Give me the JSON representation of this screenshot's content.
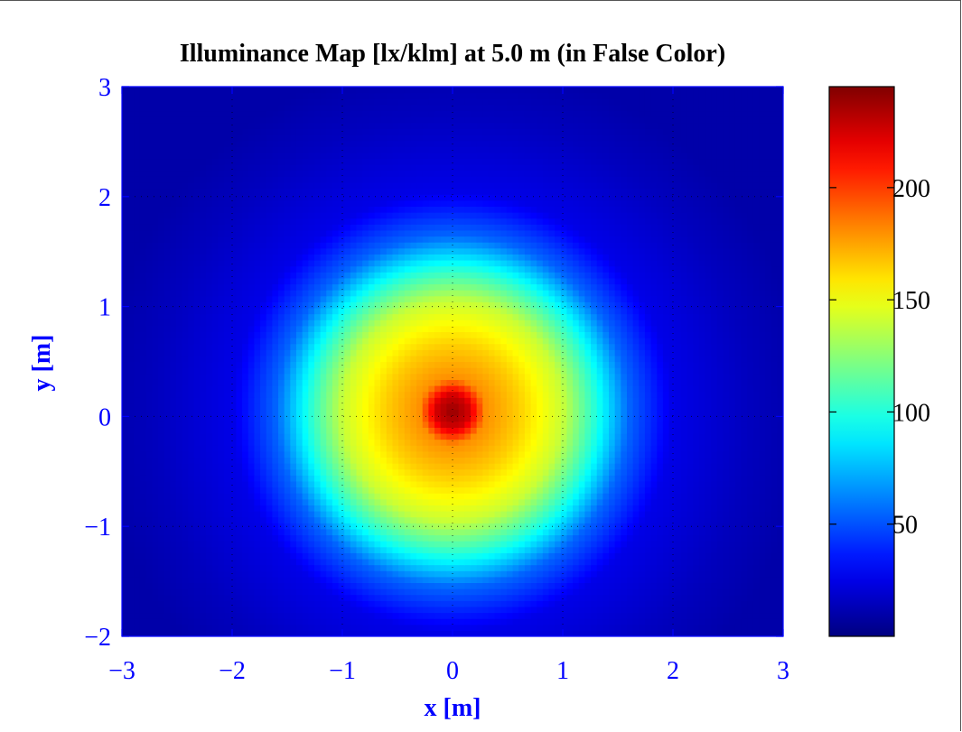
{
  "chart_data": {
    "type": "heatmap",
    "title": "Illuminance Map [lx/klm] at 5.0 m (in False Color)",
    "xlabel": "x [m]",
    "ylabel": "y [m]",
    "xlim": [
      -3,
      3
    ],
    "ylim": [
      -2,
      3
    ],
    "x_ticks": [
      -3,
      -2,
      -1,
      0,
      1,
      2,
      3
    ],
    "x_tick_labels": [
      "−3",
      "−2",
      "−1",
      "0",
      "1",
      "2",
      "3"
    ],
    "y_ticks": [
      -2,
      -1,
      0,
      1,
      2,
      3
    ],
    "y_tick_labels": [
      "−2",
      "−1",
      "0",
      "1",
      "2",
      "3"
    ],
    "grid": true,
    "colormap": "jet",
    "colorbar": {
      "range": [
        0,
        245
      ],
      "ticks": [
        50,
        100,
        150,
        200
      ],
      "tick_labels": [
        "50",
        "100",
        "150",
        "200"
      ]
    },
    "field": {
      "center": [
        0.0,
        0.05
      ],
      "peak_value": 240,
      "value_at_radius": [
        {
          "r": 0.0,
          "v": 240
        },
        {
          "r": 0.15,
          "v": 225
        },
        {
          "r": 0.3,
          "v": 180
        },
        {
          "r": 0.6,
          "v": 165
        },
        {
          "r": 1.0,
          "v": 140
        },
        {
          "r": 1.3,
          "v": 100
        },
        {
          "r": 1.6,
          "v": 55
        },
        {
          "r": 2.0,
          "v": 25
        },
        {
          "r": 2.7,
          "v": 15
        },
        {
          "r": 3.2,
          "v": 10
        }
      ]
    }
  }
}
